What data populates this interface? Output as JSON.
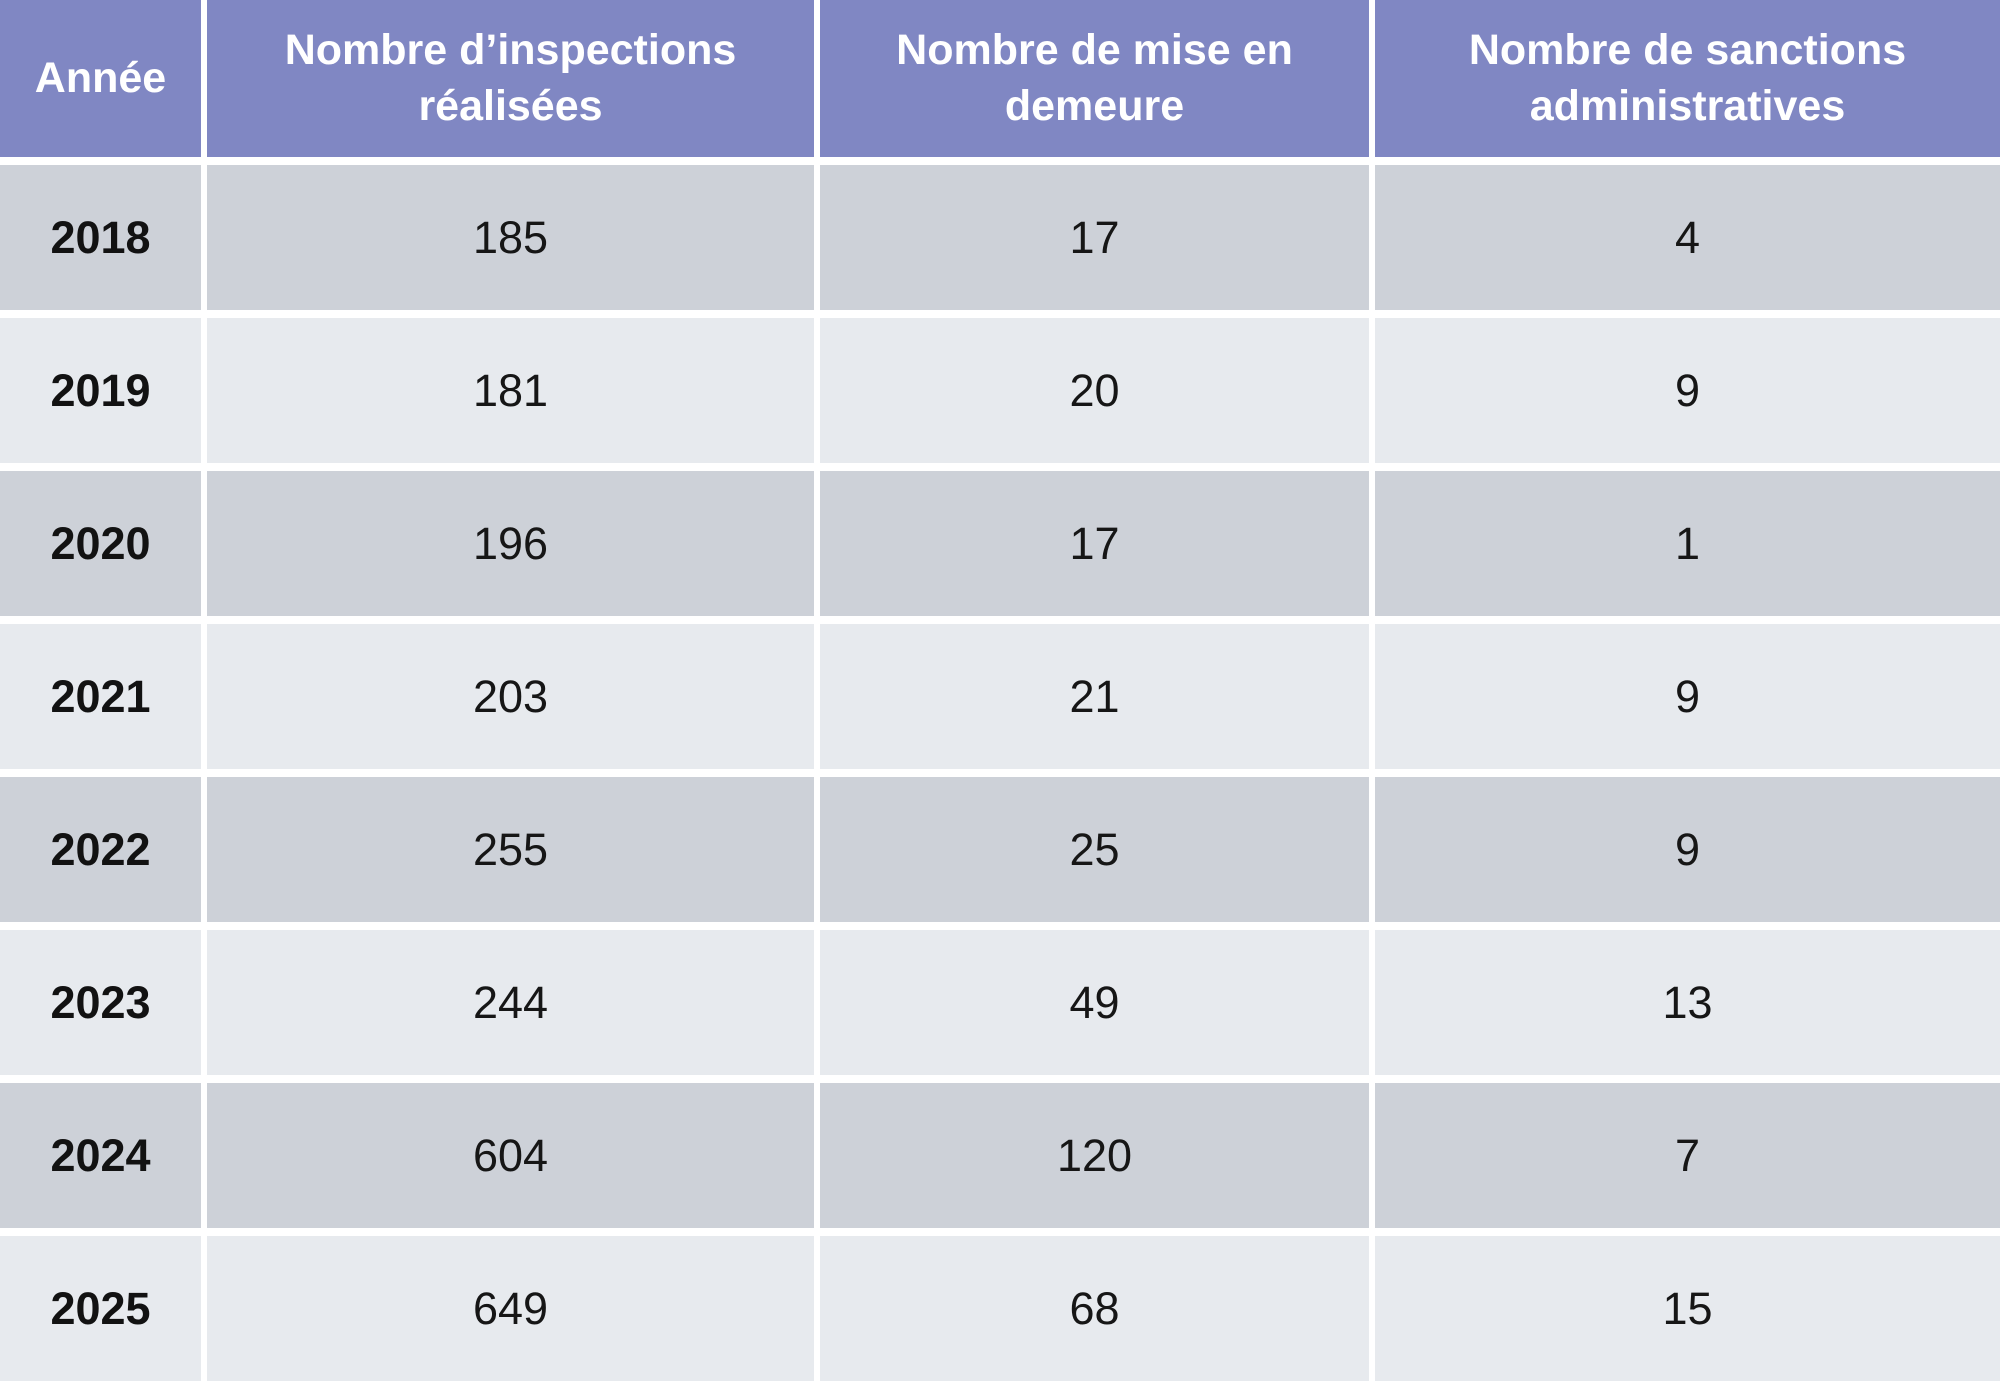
{
  "table": {
    "columns": [
      {
        "id": "annee",
        "label": "Année"
      },
      {
        "id": "inspections",
        "label": "Nombre d’inspections réalisées"
      },
      {
        "id": "mises-en-demeure",
        "label": "Nombre de mise en demeure"
      },
      {
        "id": "sanctions",
        "label": "Nombre de sanctions administratives"
      }
    ],
    "rows": [
      [
        "2018",
        "185",
        "17",
        "4"
      ],
      [
        "2019",
        "181",
        "20",
        "9"
      ],
      [
        "2020",
        "196",
        "17",
        "1"
      ],
      [
        "2021",
        "203",
        "21",
        "9"
      ],
      [
        "2022",
        "255",
        "25",
        "9"
      ],
      [
        "2023",
        "244",
        "49",
        "13"
      ],
      [
        "2024",
        "604",
        "120",
        "7"
      ],
      [
        "2025",
        "649",
        "68",
        "15"
      ]
    ]
  },
  "colors": {
    "header_bg": "#8087c3",
    "header_text": "#ffffff",
    "row_dark": "#cdd1d8",
    "row_light": "#e7eaee",
    "separator": "#ffffff",
    "body_text": "#161616"
  },
  "chart_data": {
    "type": "table",
    "title": "",
    "columns": [
      "Année",
      "Nombre d’inspections réalisées",
      "Nombre de mise en demeure",
      "Nombre de sanctions administratives"
    ],
    "rows": [
      [
        "2018",
        185,
        17,
        4
      ],
      [
        "2019",
        181,
        20,
        9
      ],
      [
        "2020",
        196,
        17,
        1
      ],
      [
        "2021",
        203,
        21,
        9
      ],
      [
        "2022",
        255,
        25,
        9
      ],
      [
        "2023",
        244,
        49,
        13
      ],
      [
        "2024",
        604,
        120,
        7
      ],
      [
        "2025",
        649,
        68,
        15
      ]
    ],
    "layout_hints": {
      "header_style": "purple-banner-white-bold-text",
      "row_striping": "alternating dark/light grey starting dark",
      "cell_alignment": "center",
      "grid": "white separators between all cells"
    }
  }
}
